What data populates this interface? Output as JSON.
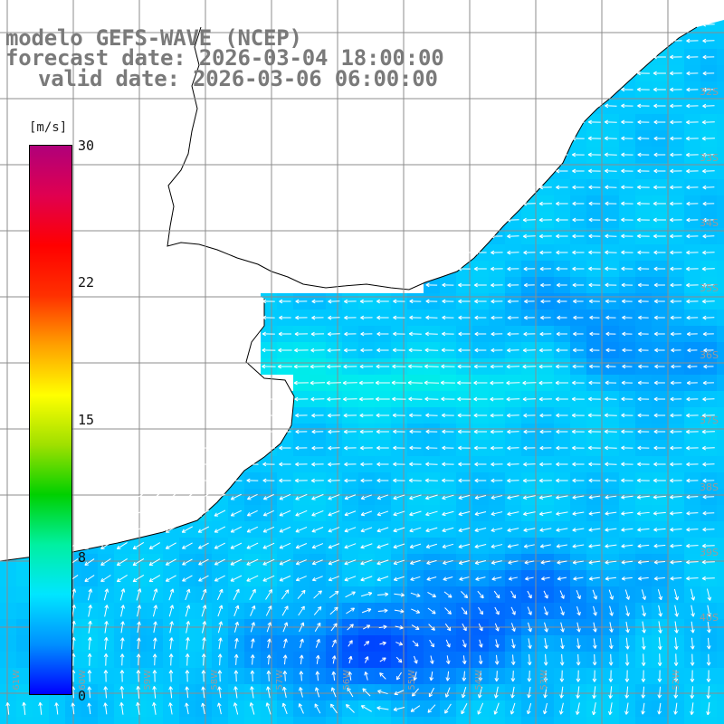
{
  "title": {
    "line1": "modelo GEFS-WAVE (NCEP)",
    "line2": "forecast date: 2026-03-04 18:00:00",
    "line3": "valid date: 2026-03-06 06:00:00"
  },
  "colorbar": {
    "unit": "[m/s]",
    "ticks": [
      "30",
      "22",
      "15",
      "8",
      "0"
    ],
    "tick_values": [
      30,
      22,
      15,
      8,
      0
    ],
    "min": 0,
    "max": 30,
    "colors": [
      "#0000ff",
      "#0090ff",
      "#00e6ff",
      "#00f0a0",
      "#00d000",
      "#a0e000",
      "#ffff00",
      "#ffa000",
      "#ff3000",
      "#ff0000",
      "#e00050",
      "#b0007a"
    ]
  },
  "map": {
    "ocean_base_color": "#12bff2",
    "land_color": "#ffffff",
    "grid_color": "#8c8c8c",
    "coast_color": "#000000",
    "arrow_color": "#ffffff",
    "lat_labels": [
      "32S",
      "33S",
      "34S",
      "35S",
      "36S",
      "37S",
      "38S",
      "39S",
      "40S"
    ],
    "lon_labels": [
      "61W",
      "60W",
      "59W",
      "58W",
      "57W",
      "56W",
      "55W",
      "54W",
      "53W",
      "52W"
    ]
  }
}
